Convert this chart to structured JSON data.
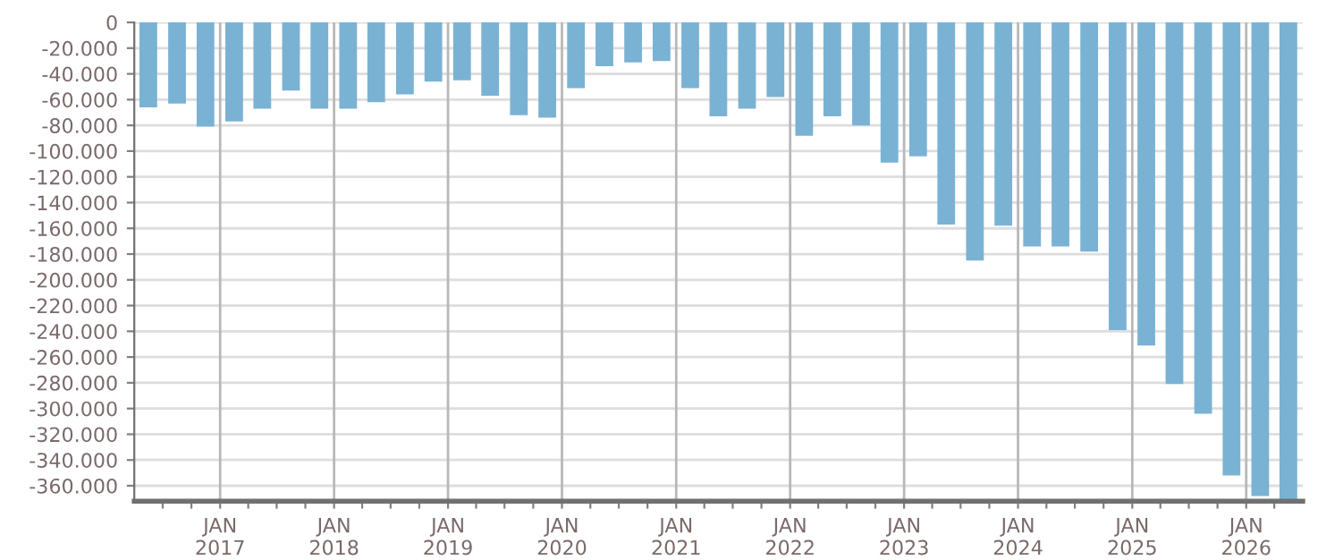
{
  "chart_data": {
    "type": "bar",
    "color": "#7ab2d4",
    "x": [
      "2016-05-16",
      "2016-08-16",
      "2016-11-15",
      "2017-02-15",
      "2017-05-16",
      "2017-08-16",
      "2017-11-15",
      "2018-02-15",
      "2018-05-16",
      "2018-08-16",
      "2018-11-15",
      "2019-02-15",
      "2019-05-16",
      "2019-08-16",
      "2019-11-15",
      "2020-02-15",
      "2020-05-16",
      "2020-08-16",
      "2020-11-15",
      "2021-02-15",
      "2021-05-16",
      "2021-08-16",
      "2021-11-15",
      "2022-02-15",
      "2022-05-16",
      "2022-08-16",
      "2022-11-15",
      "2023-02-15",
      "2023-05-16",
      "2023-08-16",
      "2023-11-15",
      "2024-02-15",
      "2024-05-16",
      "2024-08-16",
      "2024-11-15",
      "2025-02-15",
      "2025-05-16",
      "2025-08-16",
      "2025-11-15",
      "2026-02-15",
      "2026-05-16"
    ],
    "values": [
      -66000,
      -63000,
      -81000,
      -77000,
      -67000,
      -53000,
      -67000,
      -67000,
      -62000,
      -56000,
      -46000,
      -45000,
      -57000,
      -72000,
      -74000,
      -51000,
      -34000,
      -31000,
      -30000,
      -51000,
      -73000,
      -67000,
      -58000,
      -88000,
      -73000,
      -80000,
      -109000,
      -104000,
      -157000,
      -185000,
      -158000,
      -174000,
      -174000,
      -178000,
      -239000,
      -251000,
      -281000,
      -304000,
      -352000,
      -368000,
      -372000
    ],
    "ylim": [
      -372000,
      0
    ],
    "yticks": [
      0,
      {
        "value": -20000,
        "label": "-20.000"
      },
      {
        "value": -40000,
        "label": "-40.000"
      },
      {
        "value": -60000,
        "label": "-60.000"
      },
      {
        "value": -80000,
        "label": "-80.000"
      },
      {
        "value": -100000,
        "label": "-100.000"
      },
      {
        "value": -120000,
        "label": "-120.000"
      },
      {
        "value": -140000,
        "label": "-140.000"
      },
      {
        "value": -160000,
        "label": "-160.000"
      },
      {
        "value": -180000,
        "label": "-180.000"
      },
      {
        "value": -200000,
        "label": "-200.000"
      },
      {
        "value": -220000,
        "label": "-220.000"
      },
      {
        "value": -240000,
        "label": "-240.000"
      },
      {
        "value": -260000,
        "label": "-260.000"
      },
      {
        "value": -280000,
        "label": "-280.000"
      },
      {
        "value": -300000,
        "label": "-300.000"
      },
      {
        "value": -320000,
        "label": "-320.000"
      },
      {
        "value": -340000,
        "label": "-340.000"
      },
      {
        "value": -360000,
        "label": "-360.000"
      }
    ],
    "xlim": [
      "2016-04",
      "2026-07"
    ],
    "xticks": [
      {
        "value": "2016-07",
        "label": null
      },
      {
        "value": "2016-10",
        "label": null
      },
      {
        "value": "2017-01",
        "label": "JAN\n2017"
      },
      {
        "value": "2017-04",
        "label": null
      },
      {
        "value": "2017-07",
        "label": null
      },
      {
        "value": "2017-10",
        "label": null
      },
      {
        "value": "2018-01",
        "label": "JAN\n2018"
      },
      {
        "value": "2018-04",
        "label": null
      },
      {
        "value": "2018-07",
        "label": null
      },
      {
        "value": "2018-10",
        "label": null
      },
      {
        "value": "2019-01",
        "label": "JAN\n2019"
      },
      {
        "value": "2019-04",
        "label": null
      },
      {
        "value": "2019-07",
        "label": null
      },
      {
        "value": "2019-10",
        "label": null
      },
      {
        "value": "2020-01",
        "label": "JAN\n2020"
      },
      {
        "value": "2020-04",
        "label": null
      },
      {
        "value": "2020-07",
        "label": null
      },
      {
        "value": "2020-10",
        "label": null
      },
      {
        "value": "2021-01",
        "label": "JAN\n2021"
      },
      {
        "value": "2021-04",
        "label": null
      },
      {
        "value": "2021-07",
        "label": null
      },
      {
        "value": "2021-10",
        "label": null
      },
      {
        "value": "2022-01",
        "label": "JAN\n2022"
      },
      {
        "value": "2022-04",
        "label": null
      },
      {
        "value": "2022-07",
        "label": null
      },
      {
        "value": "2022-10",
        "label": null
      },
      {
        "value": "2023-01",
        "label": "JAN\n2023"
      },
      {
        "value": "2023-04",
        "label": null
      },
      {
        "value": "2023-07",
        "label": null
      },
      {
        "value": "2023-10",
        "label": null
      },
      {
        "value": "2024-01",
        "label": "JAN\n2024"
      },
      {
        "value": "2024-04",
        "label": null
      },
      {
        "value": "2024-07",
        "label": null
      },
      {
        "value": "2024-10",
        "label": null
      },
      {
        "value": "2025-01",
        "label": "JAN\n2025"
      },
      {
        "value": "2025-04",
        "label": null
      },
      {
        "value": "2025-07",
        "label": null
      },
      {
        "value": "2025-10",
        "label": null
      },
      {
        "value": "2026-01",
        "label": "JAN\n2026"
      },
      {
        "value": "2026-04",
        "label": null
      }
    ],
    "grid": true
  }
}
